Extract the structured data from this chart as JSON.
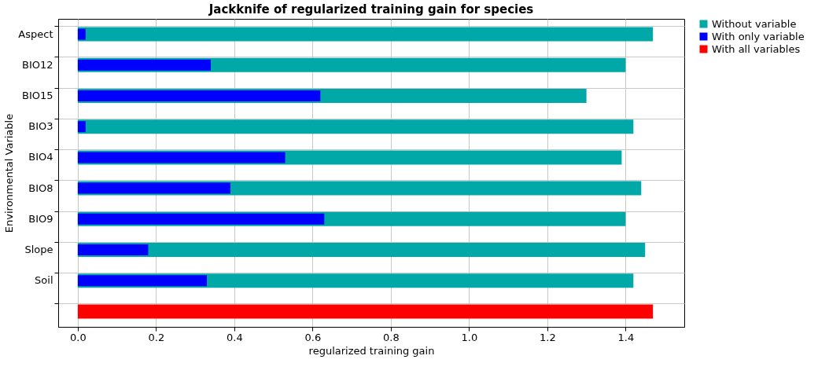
{
  "chart_data": {
    "type": "bar",
    "orientation": "horizontal",
    "title": "Jackknife of regularized training gain for species",
    "xlabel": "regularized training gain",
    "ylabel": "Environmental Variable",
    "categories": [
      "Aspect",
      "BIO12",
      "BIO15",
      "BIO3",
      "BIO4",
      "BIO8",
      "BIO9",
      "Slope",
      "Soil",
      null
    ],
    "series": [
      {
        "name": "Without variable",
        "color": "#00a8a8",
        "values": [
          1.47,
          1.4,
          1.3,
          1.42,
          1.39,
          1.44,
          1.4,
          1.45,
          1.42,
          null
        ]
      },
      {
        "name": "With only variable",
        "color": "#0000ff",
        "values": [
          0.02,
          0.34,
          0.62,
          0.02,
          0.53,
          0.39,
          0.63,
          0.18,
          0.33,
          null
        ]
      },
      {
        "name": "With all variables",
        "color": "#ff0000",
        "values": [
          null,
          null,
          null,
          null,
          null,
          null,
          null,
          null,
          null,
          1.47
        ]
      }
    ],
    "xlim": [
      -0.05,
      1.55
    ],
    "xticks": [
      {
        "value": 0,
        "label": "0.0"
      },
      0.2,
      0.4,
      0.6,
      0.8,
      {
        "value": 1,
        "label": "1.0"
      },
      1.2,
      1.4
    ],
    "grid": true,
    "legend": "top right"
  }
}
